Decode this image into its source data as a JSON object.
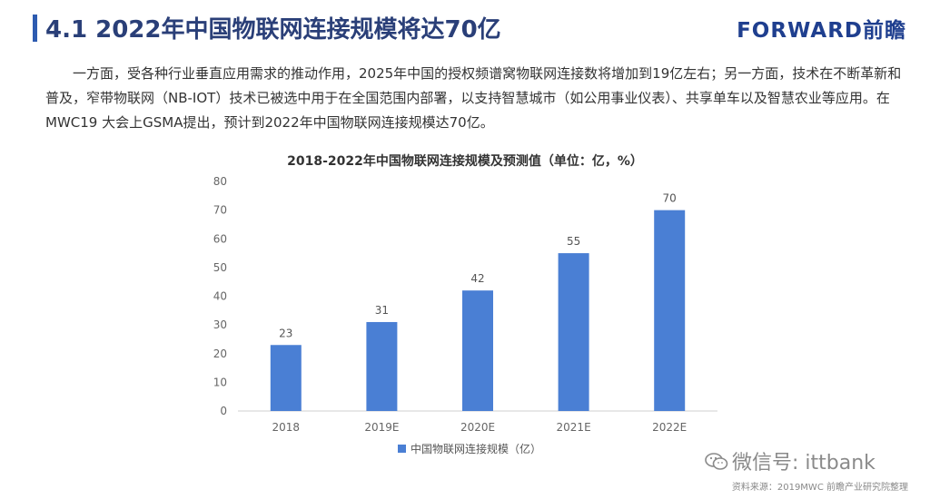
{
  "header": {
    "title": "4.1 2022年中国物联网连接规模将达70亿",
    "brand": "FORWARD前瞻"
  },
  "paragraph": "一方面，受各种行业垂直应用需求的推动作用，2025年中国的授权频谱窝物联网连接数将增加到19亿左右；另一方面，技术在不断革新和普及，窄带物联网（NB-IOT）技术已被选中用于在全国范围内部署，以支持智慧城市（如公用事业仪表）、共享单车以及智慧农业等应用。在MWC19 大会上GSMA提出，预计到2022年中国物联网连接规模达70亿。",
  "chart_data": {
    "type": "bar",
    "title": "2018-2022年中国物联网连接规模及预测值（单位：亿，%）",
    "categories": [
      "2018",
      "2019E",
      "2020E",
      "2021E",
      "2022E"
    ],
    "series": [
      {
        "name": "中国物联网连接规模（亿）",
        "values": [
          23,
          31,
          42,
          55,
          70
        ]
      }
    ],
    "ylim": [
      0,
      80
    ],
    "yticks": [
      0,
      10,
      20,
      30,
      40,
      50,
      60,
      70,
      80
    ],
    "bar_color": "#4a7fd4",
    "legend_position": "bottom",
    "grid": false
  },
  "watermark": "微信号: ittbank",
  "source": "资料来源：2019MWC 前瞻产业研究院整理"
}
